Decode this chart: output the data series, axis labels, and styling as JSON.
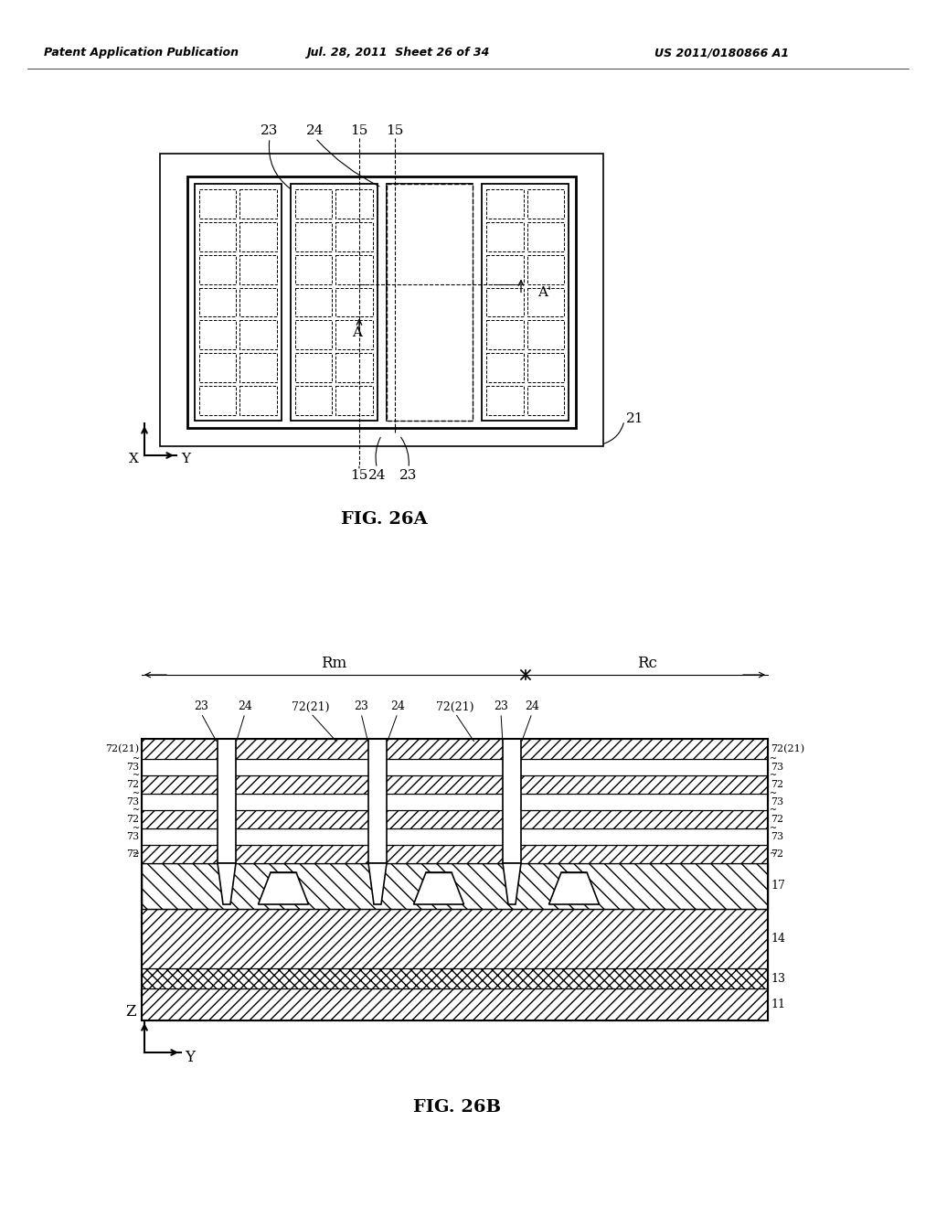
{
  "background_color": "#ffffff",
  "header_left": "Patent Application Publication",
  "header_mid": "Jul. 28, 2011  Sheet 26 of 34",
  "header_right": "US 2011/0180866 A1",
  "fig26a_caption": "FIG. 26A",
  "fig26b_caption": "FIG. 26B",
  "fig26a_labels_top": [
    "23",
    "24",
    "15",
    "15"
  ],
  "fig26a_labels_bottom": [
    "24",
    "15",
    "23"
  ],
  "fig26a_label_21": "21",
  "fig26a_label_Ap": "A'",
  "fig26b_labels_top": [
    "23",
    "24",
    "72(21)",
    "23",
    "24",
    "72(21)",
    "23",
    "24"
  ],
  "fig26b_labels_left": [
    "72(21)",
    "73",
    "72",
    "73",
    "72",
    "73",
    "72"
  ],
  "fig26b_labels_right": [
    "72(21)",
    "73",
    "72",
    "73",
    "72",
    "73",
    "72"
  ],
  "fig26b_labels_right_lower": [
    "17",
    "14",
    "13",
    "11"
  ],
  "fig26b_label_Rm": "Rm",
  "fig26b_label_Rc": "Rc"
}
